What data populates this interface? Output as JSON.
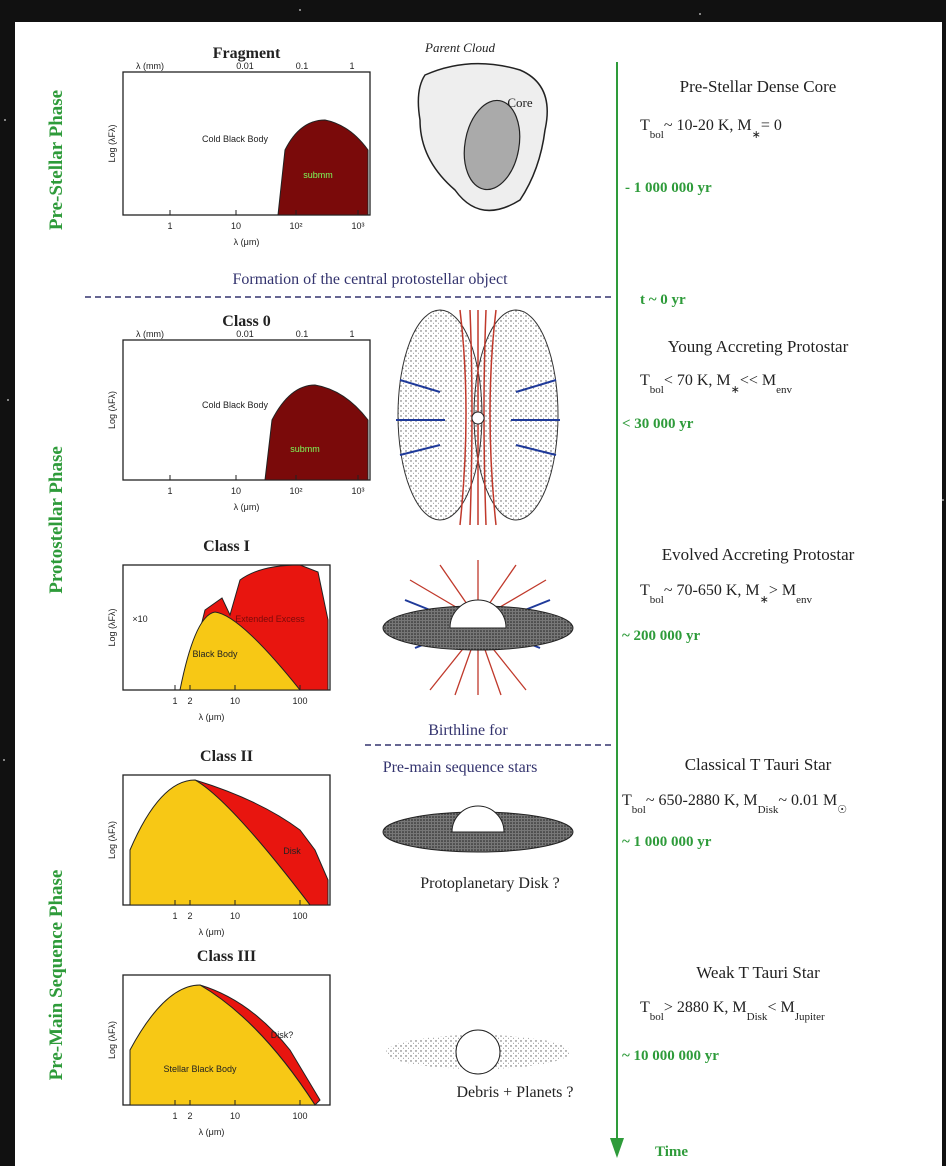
{
  "phases": [
    "Pre-Stellar Phase",
    "Protostellar Phase",
    "Pre-Main Sequence Phase"
  ],
  "plots": [
    {
      "title": "Fragment",
      "top_axis": [
        "λ (mm)",
        "0.01",
        "0.1",
        "1"
      ],
      "y_label": "Log (λFλ)",
      "x_ticks": [
        "1",
        "10",
        "10²",
        "10³"
      ],
      "x_label": "λ (μm)",
      "labels": [
        "Cold Black Body",
        "submm"
      ]
    },
    {
      "title": "Class 0",
      "top_axis": [
        "λ (mm)",
        "0.01",
        "0.1",
        "1"
      ],
      "y_label": "Log (λFλ)",
      "x_ticks": [
        "1",
        "10",
        "10²",
        "10³"
      ],
      "x_label": "λ (μm)",
      "labels": [
        "Cold Black Body",
        "submm"
      ]
    },
    {
      "title": "Class I",
      "y_label": "Log (λFλ)",
      "x_ticks": [
        "1",
        "2",
        "10",
        "100"
      ],
      "x_label": "λ (μm)",
      "labels": [
        "Extended Excess",
        "Black Body",
        "×10"
      ]
    },
    {
      "title": "Class II",
      "y_label": "Log (λFλ)",
      "x_ticks": [
        "1",
        "2",
        "10",
        "100"
      ],
      "x_label": "λ (μm)",
      "labels": [
        "Disk"
      ]
    },
    {
      "title": "Class III",
      "y_label": "Log (λFλ)",
      "x_ticks": [
        "1",
        "2",
        "10",
        "100"
      ],
      "x_label": "λ (μm)",
      "labels": [
        "Disk?",
        "Stellar Black Body"
      ]
    }
  ],
  "illustrations": {
    "parent_cloud": "Parent Cloud",
    "core": "Core",
    "formation": "Formation of the central protostellar object",
    "birthline": [
      "Birthline for",
      "Pre-main sequence stars"
    ],
    "protoplanetary": "Protoplanetary Disk ?",
    "debris": "Debris + Planets ?"
  },
  "stages": [
    {
      "name": "Pre-Stellar Dense Core",
      "formula": [
        "T",
        "bol",
        "~ 10-20 K,  M",
        "∗",
        "= 0"
      ],
      "age": "- 1 000 000 yr"
    },
    {
      "name": "Young Accreting Protostar",
      "formula": [
        "T",
        "bol",
        "< 70 K,  M",
        "∗",
        "<< M",
        "env"
      ],
      "age": "< 30 000 yr"
    },
    {
      "name": "Evolved Accreting Protostar",
      "formula": [
        "T",
        "bol",
        "~ 70-650 K,  M",
        "∗",
        "> M",
        "env"
      ],
      "age": "~ 200 000 yr"
    },
    {
      "name": "Classical T Tauri Star",
      "formula": [
        "T",
        "bol",
        "~ 650-2880 K,  M",
        "Disk",
        "~ 0.01 M",
        "☉"
      ],
      "age": "~ 1 000 000 yr"
    },
    {
      "name": "Weak T Tauri Star",
      "formula": [
        "T",
        "bol",
        "> 2880 K,  M",
        "Disk",
        "< M",
        "Jupiter"
      ],
      "age": "~ 10 000 000 yr"
    }
  ],
  "t_zero": "t ~ 0 yr",
  "time_axis": "Time"
}
